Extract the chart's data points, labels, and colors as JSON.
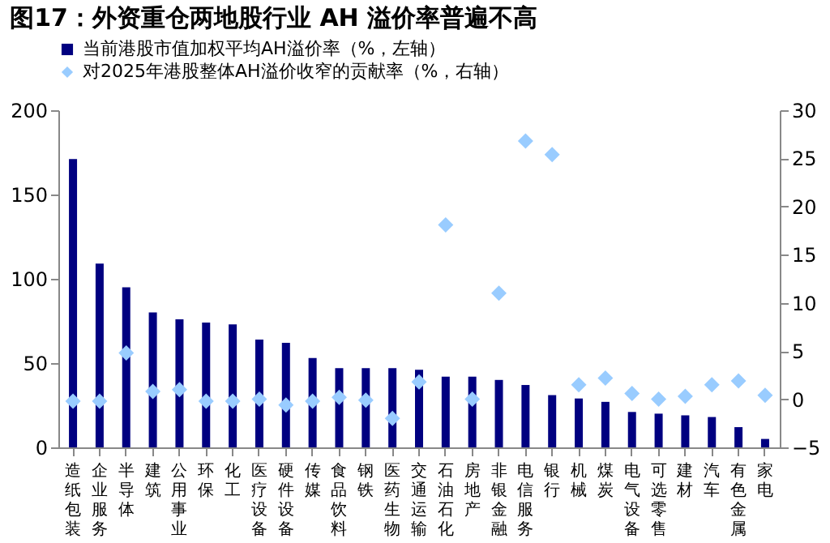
{
  "chart_data": {
    "type": "bar",
    "title": "图17：外资重仓两地股行业 AH 溢价率普遍不高",
    "categories": [
      "造纸包装",
      "企业服务",
      "半导体",
      "建筑",
      "公用事业",
      "环保",
      "化工",
      "医疗设备",
      "硬件设备",
      "传媒",
      "食品饮料",
      "钢铁",
      "医药生物",
      "交通运输",
      "石油石化",
      "房地产",
      "非银金融",
      "电信服务",
      "银行",
      "机械",
      "煤炭",
      "电气设备",
      "可选零售",
      "建材",
      "汽车",
      "有色金属",
      "家电"
    ],
    "series": [
      {
        "name": "当前港股市值加权平均AH溢价率（%，左轴）",
        "color": "#000080",
        "values": [
          171,
          109,
          95,
          80,
          76,
          74,
          73,
          64,
          62,
          53,
          47,
          47,
          47,
          46,
          42,
          42,
          40,
          37,
          31,
          29,
          27,
          21,
          20,
          19,
          18,
          12,
          5
        ]
      },
      {
        "name": "对2025年港股整体AH溢价收窄的贡献率（%，右轴）",
        "type": "scatter",
        "axis": "y2",
        "marker": "diamond",
        "color": "#99ccff",
        "values": [
          -0.2,
          -0.2,
          4.8,
          0.8,
          1.0,
          -0.2,
          -0.2,
          0,
          -0.6,
          -0.2,
          0.2,
          -0.1,
          -2.0,
          1.8,
          18.1,
          0,
          11.0,
          26.8,
          25.4,
          1.5,
          2.2,
          0.6,
          0,
          0.3,
          1.5,
          1.9,
          0.4
        ]
      }
    ],
    "ylim": [
      0,
      200
    ],
    "yticks": [
      0,
      50,
      100,
      150,
      200
    ],
    "y2lim": [
      -5,
      30
    ],
    "y2ticks": [
      -5,
      0,
      5,
      10,
      15,
      20,
      25,
      30
    ],
    "legend": "top"
  }
}
